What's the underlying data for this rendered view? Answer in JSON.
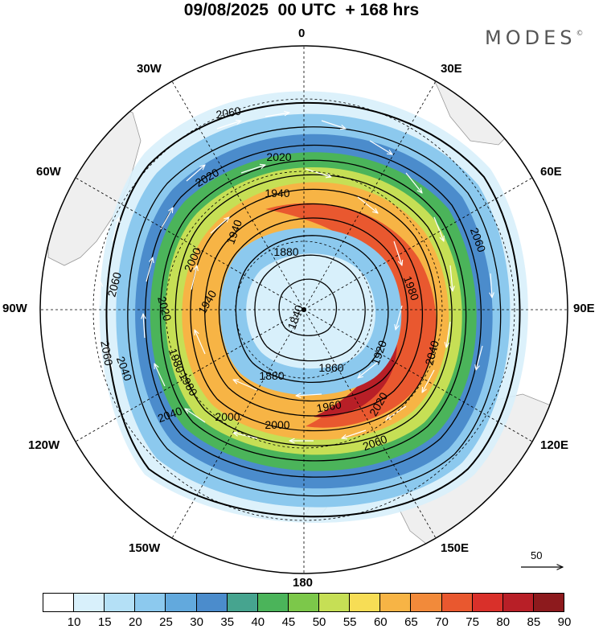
{
  "header": {
    "title": "09/08/2025  00 UTC  + 168 hrs",
    "brand": "MODES",
    "brand_mark": "©"
  },
  "map": {
    "projection": "south-polar-stereographic",
    "longitude_labels": [
      "0",
      "30E",
      "60E",
      "90E",
      "120E",
      "150E",
      "180",
      "150W",
      "120W",
      "90W",
      "60W",
      "30W"
    ],
    "contour_labels": [
      "1840",
      "1860",
      "1880",
      "1920",
      "1940",
      "1960",
      "1980",
      "2000",
      "2020",
      "2040",
      "2060"
    ],
    "colors": {
      "land": "#efefef",
      "contour": "#000000",
      "vector": "#ffffff"
    }
  },
  "reference_vector": {
    "value": "50"
  },
  "colorbar": {
    "ticks": [
      "10",
      "15",
      "20",
      "25",
      "30",
      "35",
      "40",
      "45",
      "50",
      "55",
      "60",
      "65",
      "70",
      "75",
      "80",
      "85",
      "90"
    ],
    "colors": [
      "#ffffff",
      "#d8f0fb",
      "#b4e0f6",
      "#8cc9ee",
      "#62a9dd",
      "#4b8ccc",
      "#46a48f",
      "#4bb45a",
      "#7cc84a",
      "#c6df55",
      "#f7dd55",
      "#f7b445",
      "#f28a3a",
      "#e9582f",
      "#d9302a",
      "#b81f27",
      "#8d1a1d"
    ]
  }
}
